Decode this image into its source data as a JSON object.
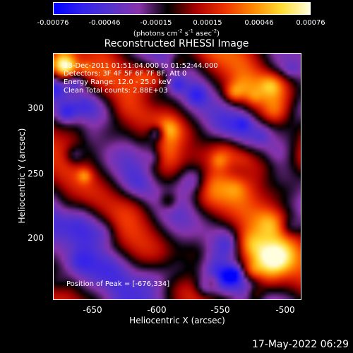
{
  "colorbar": {
    "ticks": [
      "-0.00076",
      "-0.00046",
      "-0.00015",
      "0.00015",
      "0.00046",
      "0.00076"
    ],
    "units_prefix": "(photons cm",
    "units_exp1": "-2",
    "units_mid1": " s",
    "units_exp2": "-1",
    "units_mid2": " asec",
    "units_exp3": "-2",
    "units_suffix": ")"
  },
  "title": "Reconstructed RHESSI Image",
  "info": {
    "line1": "28-Dec-2011 01:51:04.000 to 01:52:44.000",
    "line2": "Detectors: 3F 4F 5F 6F 7F 8F, Att 0",
    "line3": "Energy Range: 12.0 - 25.0 keV",
    "line4": "Clean     Total counts: 2.88E+03",
    "peak": "Position of Peak = [-676,334]"
  },
  "axes": {
    "xlabel": "Heliocentric X (arcsec)",
    "ylabel": "Heliocentric Y (arcsec)",
    "xticks": [
      "-650",
      "-600",
      "-550",
      "-500"
    ],
    "yticks": [
      "300",
      "250",
      "200"
    ]
  },
  "timestamp": "17-May-2022 06:29",
  "colors": {
    "colormap": [
      "#0000ff",
      "#3322ee",
      "#5533cc",
      "#8833aa",
      "#000000",
      "#aa0000",
      "#ee3300",
      "#ff8800",
      "#ffdd33",
      "#ffffdd"
    ]
  }
}
